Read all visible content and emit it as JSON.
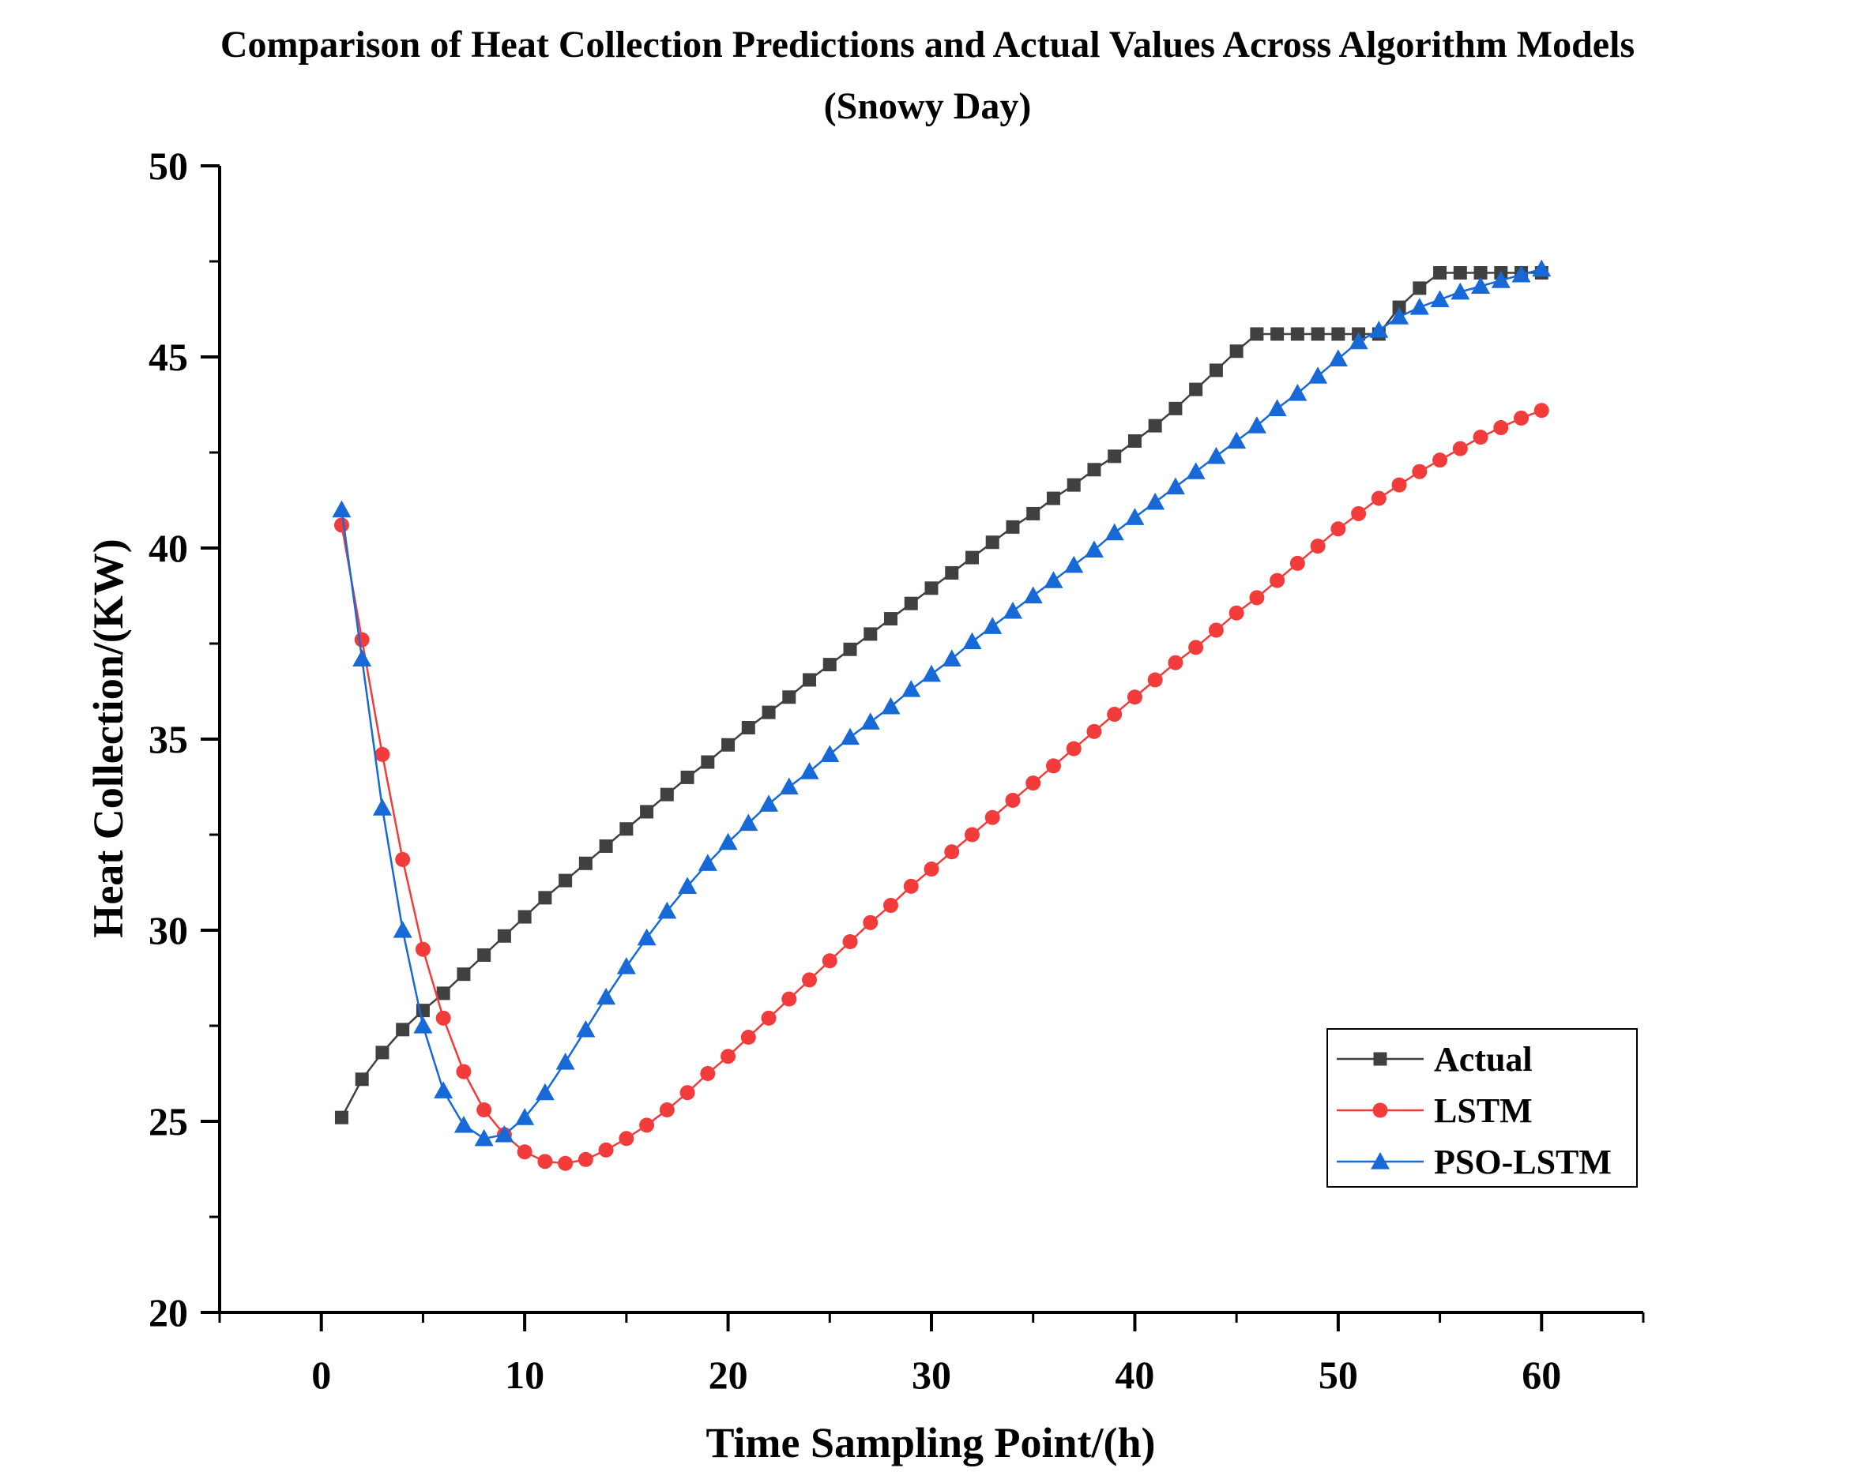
{
  "chart_data": {
    "type": "line",
    "title": "Comparison of Heat Collection Predictions and Actual Values Across Algorithm Models",
    "subtitle": "(Snowy Day)",
    "xlabel": "Time Sampling Point/(h)",
    "ylabel": "Heat Collection/(KW)",
    "xlim": [
      -5,
      65
    ],
    "ylim": [
      20,
      50
    ],
    "xticks": [
      0,
      10,
      20,
      30,
      40,
      50,
      60
    ],
    "yticks": [
      20,
      25,
      30,
      35,
      40,
      45,
      50
    ],
    "xtick_labels": [
      "0",
      "10",
      "20",
      "30",
      "40",
      "50",
      "60"
    ],
    "ytick_labels": [
      "20",
      "25",
      "30",
      "35",
      "40",
      "45",
      "50"
    ],
    "legend_position": "bottom-right",
    "x": [
      1,
      2,
      3,
      4,
      5,
      6,
      7,
      8,
      9,
      10,
      11,
      12,
      13,
      14,
      15,
      16,
      17,
      18,
      19,
      20,
      21,
      22,
      23,
      24,
      25,
      26,
      27,
      28,
      29,
      30,
      31,
      32,
      33,
      34,
      35,
      36,
      37,
      38,
      39,
      40,
      41,
      42,
      43,
      44,
      45,
      46,
      47,
      48,
      49,
      50,
      51,
      52,
      53,
      54,
      55,
      56,
      57,
      58,
      59,
      60
    ],
    "series": [
      {
        "name": "Actual",
        "color": "#404040",
        "marker": "square",
        "values": [
          25.1,
          26.1,
          26.8,
          27.4,
          27.9,
          28.35,
          28.85,
          29.35,
          29.85,
          30.35,
          30.85,
          31.3,
          31.75,
          32.2,
          32.65,
          33.1,
          33.55,
          34.0,
          34.4,
          34.85,
          35.3,
          35.7,
          36.1,
          36.55,
          36.95,
          37.35,
          37.75,
          38.15,
          38.55,
          38.95,
          39.35,
          39.75,
          40.15,
          40.55,
          40.9,
          41.3,
          41.65,
          42.05,
          42.4,
          42.8,
          43.2,
          43.65,
          44.15,
          44.65,
          45.15,
          45.6,
          45.6,
          45.6,
          45.6,
          45.6,
          45.6,
          45.6,
          46.3,
          46.8,
          47.2,
          47.2,
          47.2,
          47.2,
          47.2,
          47.2
        ]
      },
      {
        "name": "LSTM",
        "color": "#f23b3b",
        "marker": "circle",
        "values": [
          40.6,
          37.6,
          34.6,
          31.85,
          29.5,
          27.7,
          26.3,
          25.3,
          24.65,
          24.2,
          23.95,
          23.9,
          24.0,
          24.25,
          24.55,
          24.9,
          25.3,
          25.75,
          26.25,
          26.7,
          27.2,
          27.7,
          28.2,
          28.7,
          29.2,
          29.7,
          30.2,
          30.65,
          31.15,
          31.6,
          32.05,
          32.5,
          32.95,
          33.4,
          33.85,
          34.3,
          34.75,
          35.2,
          35.65,
          36.1,
          36.55,
          37.0,
          37.4,
          37.85,
          38.3,
          38.7,
          39.15,
          39.6,
          40.05,
          40.5,
          40.9,
          41.3,
          41.65,
          42.0,
          42.3,
          42.6,
          42.9,
          43.15,
          43.4,
          43.6
        ]
      },
      {
        "name": "PSO-LSTM",
        "color": "#1769d8",
        "marker": "triangle",
        "values": [
          41.0,
          37.1,
          33.2,
          30.0,
          27.5,
          25.8,
          24.9,
          24.55,
          24.65,
          25.1,
          25.75,
          26.55,
          27.4,
          28.25,
          29.05,
          29.8,
          30.5,
          31.15,
          31.75,
          32.3,
          32.8,
          33.3,
          33.75,
          34.15,
          34.6,
          35.05,
          35.45,
          35.85,
          36.3,
          36.7,
          37.1,
          37.55,
          37.95,
          38.35,
          38.75,
          39.15,
          39.55,
          39.95,
          40.4,
          40.8,
          41.2,
          41.6,
          42.0,
          42.4,
          42.8,
          43.2,
          43.65,
          44.05,
          44.5,
          44.95,
          45.4,
          45.7,
          46.05,
          46.3,
          46.5,
          46.7,
          46.85,
          47.0,
          47.15,
          47.3
        ]
      }
    ]
  }
}
